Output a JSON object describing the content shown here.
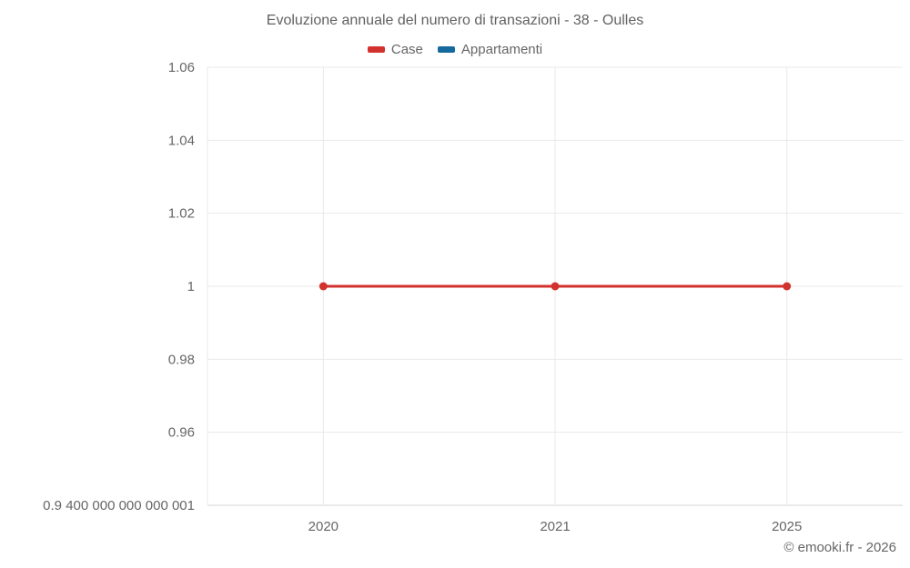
{
  "chart_data": {
    "type": "line",
    "title": "Evoluzione annuale del numero di transazioni - 38 - Oulles",
    "categories": [
      "2020",
      "2021",
      "2025"
    ],
    "series": [
      {
        "name": "Case",
        "values": [
          1,
          1,
          1
        ],
        "color": "#d2322d"
      },
      {
        "name": "Appartamenti",
        "values": [],
        "color": "#16699c"
      }
    ],
    "xlabel": "",
    "ylabel": "",
    "ylim": [
      0.9400000000000001,
      1.06
    ],
    "yticks": [
      {
        "value": 1.06,
        "label": "1.06"
      },
      {
        "value": 1.04,
        "label": "1.04"
      },
      {
        "value": 1.02,
        "label": "1.02"
      },
      {
        "value": 1.0,
        "label": "1"
      },
      {
        "value": 0.98,
        "label": "0.98"
      },
      {
        "value": 0.96,
        "label": "0.96"
      },
      {
        "value": 0.94,
        "label": "0.9 400 000 000 000 001"
      }
    ],
    "legend_position": "top",
    "grid": true
  },
  "footer": {
    "attribution": "© emooki.fr - 2026"
  },
  "colors": {
    "text": "#666666",
    "title": "#616161",
    "gridline": "#e9e9e9",
    "axis_line": "#d5d5d5",
    "background": "#ffffff"
  }
}
